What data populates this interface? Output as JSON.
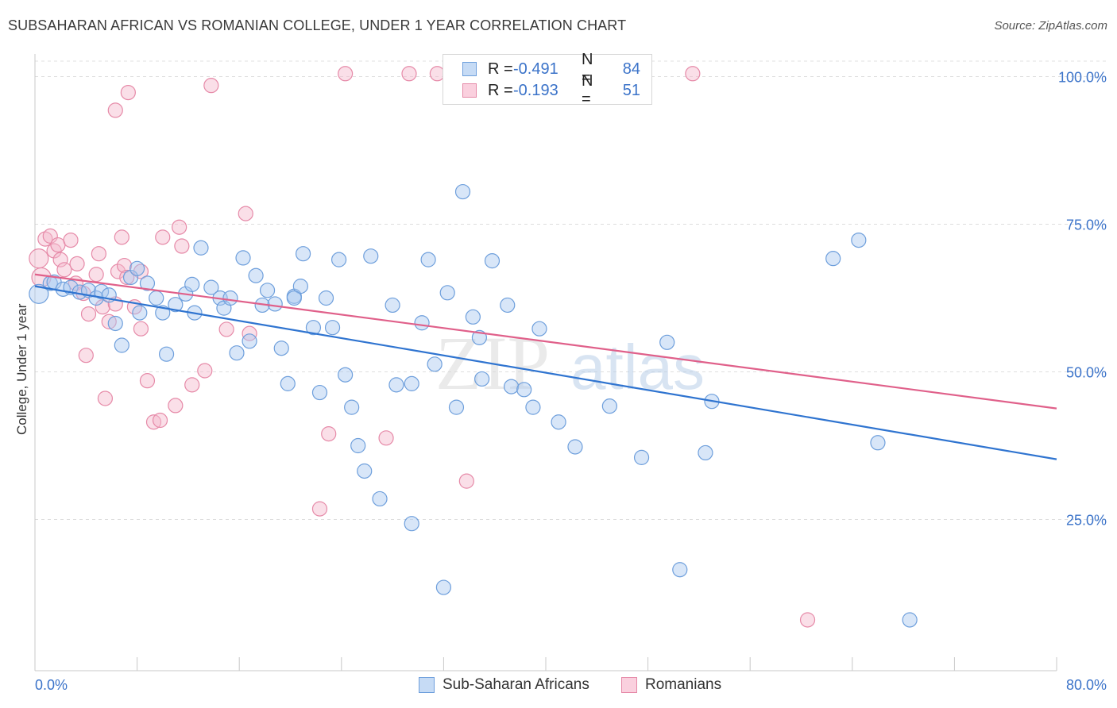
{
  "title": "SUBSAHARAN AFRICAN VS ROMANIAN COLLEGE, UNDER 1 YEAR CORRELATION CHART",
  "source": "Source: ZipAtlas.com",
  "watermark": {
    "zip": "ZIP",
    "atlas": "atlas"
  },
  "colors": {
    "blue_fill": "#a8c8f0",
    "blue_stroke": "#6e9fdc",
    "blue_line": "#2f74d0",
    "pink_fill": "#f5b8cc",
    "pink_stroke": "#e68aa8",
    "pink_line": "#e0608a",
    "tick_text": "#3b73c9"
  },
  "legend": {
    "rows": [
      {
        "r_label": "R =",
        "r_value": "-0.491",
        "n_label": "N =",
        "n_value": "84"
      },
      {
        "r_label": "R =",
        "r_value": "-0.193",
        "n_label": "N =",
        "n_value": "51"
      }
    ]
  },
  "bottom_legend": [
    "Sub-Saharan Africans",
    "Romanians"
  ],
  "chart_data": {
    "type": "scatter",
    "title": "SUBSAHARAN AFRICAN VS ROMANIAN COLLEGE, UNDER 1 YEAR CORRELATION CHART",
    "xlabel": "",
    "ylabel": "College, Under 1 year",
    "xlim": [
      0,
      80
    ],
    "ylim": [
      0,
      102
    ],
    "x_tick_labels": [
      "0.0%",
      "80.0%"
    ],
    "y_tick_labels": [
      "25.0%",
      "50.0%",
      "75.0%",
      "100.0%"
    ],
    "y_ticks": [
      25,
      50,
      75,
      100
    ],
    "grid": "horizontal dashed",
    "legend_position": "top-center",
    "series": [
      {
        "name": "Sub-Saharan Africans",
        "r": -0.491,
        "n": 84,
        "trend": [
          [
            0,
            64.5
          ],
          [
            80,
            35.2
          ]
        ],
        "points": [
          [
            0.3,
            63.2
          ],
          [
            1.2,
            65
          ],
          [
            1.5,
            65.2
          ],
          [
            2.2,
            64
          ],
          [
            2.8,
            64.3
          ],
          [
            3.5,
            63.5
          ],
          [
            4.2,
            63.8
          ],
          [
            4.8,
            62.5
          ],
          [
            5.2,
            63.6
          ],
          [
            5.8,
            63
          ],
          [
            6.3,
            58.2
          ],
          [
            6.8,
            54.5
          ],
          [
            7.5,
            66
          ],
          [
            8,
            67.5
          ],
          [
            8.2,
            60
          ],
          [
            8.8,
            65
          ],
          [
            9.5,
            62.5
          ],
          [
            10,
            60
          ],
          [
            10.3,
            53
          ],
          [
            11,
            61.4
          ],
          [
            11.8,
            63.2
          ],
          [
            12.3,
            64.8
          ],
          [
            12.5,
            60
          ],
          [
            13,
            71
          ],
          [
            13.8,
            64.3
          ],
          [
            14.5,
            62.5
          ],
          [
            14.8,
            60.8
          ],
          [
            15.3,
            62.5
          ],
          [
            15.8,
            53.2
          ],
          [
            16.3,
            69.3
          ],
          [
            16.8,
            55.2
          ],
          [
            17.3,
            66.3
          ],
          [
            17.8,
            61.3
          ],
          [
            18.2,
            63.8
          ],
          [
            18.8,
            61.5
          ],
          [
            19.3,
            54
          ],
          [
            19.8,
            48
          ],
          [
            20.3,
            62.8
          ],
          [
            20.8,
            64.5
          ],
          [
            21,
            70
          ],
          [
            21.8,
            57.5
          ],
          [
            22.3,
            46.5
          ],
          [
            22.8,
            62.5
          ],
          [
            23.3,
            57.5
          ],
          [
            23.8,
            69
          ],
          [
            24.3,
            49.5
          ],
          [
            24.8,
            44
          ],
          [
            25.3,
            37.5
          ],
          [
            25.8,
            33.2
          ],
          [
            26.3,
            69.6
          ],
          [
            27,
            28.5
          ],
          [
            28,
            61.3
          ],
          [
            28.3,
            47.8
          ],
          [
            29.5,
            24.3
          ],
          [
            30.3,
            58.3
          ],
          [
            30.8,
            69
          ],
          [
            31.3,
            51.3
          ],
          [
            32,
            13.5
          ],
          [
            32.3,
            63.4
          ],
          [
            33,
            44
          ],
          [
            33.5,
            80.5
          ],
          [
            34.3,
            59.3
          ],
          [
            34.8,
            55.8
          ],
          [
            35,
            48.8
          ],
          [
            35.8,
            68.8
          ],
          [
            37,
            61.3
          ],
          [
            37.3,
            47.5
          ],
          [
            38.3,
            47
          ],
          [
            39,
            44
          ],
          [
            39.5,
            57.3
          ],
          [
            41,
            41.5
          ],
          [
            42.3,
            37.3
          ],
          [
            45,
            44.2
          ],
          [
            47.5,
            35.5
          ],
          [
            49.5,
            55
          ],
          [
            50.5,
            16.5
          ],
          [
            52.5,
            36.3
          ],
          [
            53,
            45
          ],
          [
            62.5,
            69.2
          ],
          [
            64.5,
            72.3
          ],
          [
            66,
            38
          ],
          [
            68.5,
            8
          ],
          [
            20.3,
            62.5
          ],
          [
            29.5,
            48
          ]
        ]
      },
      {
        "name": "Romanians",
        "r": -0.193,
        "n": 51,
        "trend": [
          [
            0,
            66.5
          ],
          [
            80,
            43.8
          ]
        ],
        "points": [
          [
            0.3,
            69.2
          ],
          [
            0.5,
            66
          ],
          [
            0.8,
            72.5
          ],
          [
            1.2,
            73
          ],
          [
            1.5,
            70.5
          ],
          [
            1.8,
            71.5
          ],
          [
            2,
            69
          ],
          [
            2.3,
            67.3
          ],
          [
            2.8,
            72.3
          ],
          [
            3.2,
            65
          ],
          [
            3.3,
            68.3
          ],
          [
            3.8,
            63.3
          ],
          [
            4,
            52.8
          ],
          [
            4.2,
            59.8
          ],
          [
            4.8,
            66.5
          ],
          [
            5,
            70
          ],
          [
            5.3,
            61
          ],
          [
            5.5,
            45.5
          ],
          [
            5.8,
            58.5
          ],
          [
            6.3,
            61.5
          ],
          [
            6.5,
            67
          ],
          [
            6.8,
            72.8
          ],
          [
            6.3,
            94.3
          ],
          [
            7,
            68
          ],
          [
            7.2,
            66
          ],
          [
            7.3,
            97.3
          ],
          [
            7.8,
            61
          ],
          [
            8.3,
            67
          ],
          [
            8.3,
            57.3
          ],
          [
            8.8,
            48.5
          ],
          [
            9.3,
            41.5
          ],
          [
            9.8,
            41.8
          ],
          [
            10,
            72.8
          ],
          [
            11,
            44.3
          ],
          [
            11.3,
            74.5
          ],
          [
            11.5,
            71.3
          ],
          [
            12.3,
            47.8
          ],
          [
            13.3,
            50.2
          ],
          [
            13.8,
            98.5
          ],
          [
            15,
            57.2
          ],
          [
            16.5,
            76.8
          ],
          [
            16.8,
            56.5
          ],
          [
            22.3,
            26.8
          ],
          [
            23,
            39.5
          ],
          [
            24.3,
            100.5
          ],
          [
            27.5,
            38.8
          ],
          [
            29.3,
            100.5
          ],
          [
            31.5,
            100.5
          ],
          [
            33.8,
            31.5
          ],
          [
            51.5,
            100.5
          ],
          [
            60.5,
            8
          ]
        ]
      }
    ]
  }
}
